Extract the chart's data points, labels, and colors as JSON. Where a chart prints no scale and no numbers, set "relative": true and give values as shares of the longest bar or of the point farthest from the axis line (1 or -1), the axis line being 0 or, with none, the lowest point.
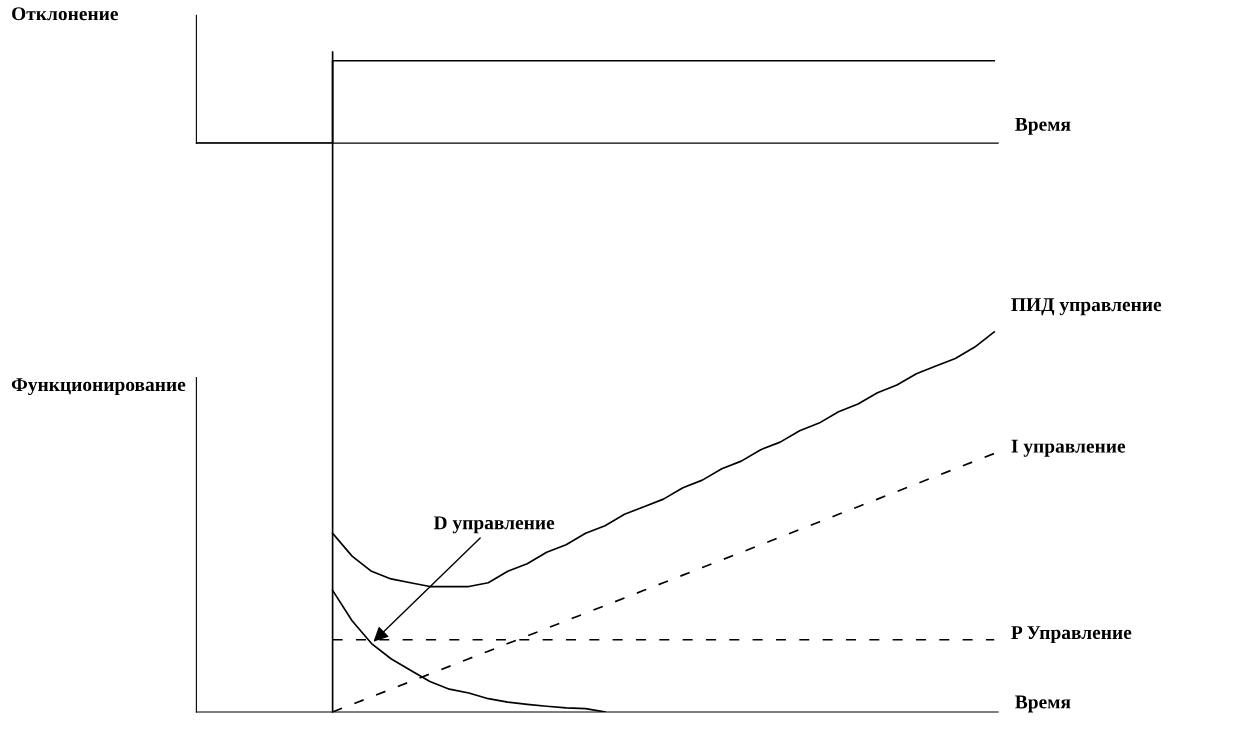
{
  "chart_data": [
    {
      "type": "step",
      "relative": true,
      "ylabel": "Отклонение",
      "xlabel": "Время",
      "tick_labels": false,
      "grid": false,
      "legend": false,
      "categories": [
        null,
        null,
        null,
        null,
        null,
        null,
        null,
        null,
        null,
        null,
        null,
        null,
        null,
        null,
        null,
        null,
        null,
        null,
        null,
        null,
        null,
        null,
        null,
        null,
        null,
        null,
        null,
        null,
        null,
        null,
        null,
        null,
        null,
        null,
        null,
        null,
        null,
        null,
        null,
        null,
        null,
        null
      ],
      "series": [
        {
          "color": "#000000",
          "line_style": "solid",
          "values": [
            0,
            0,
            0,
            0,
            0,
            0,
            0,
            1,
            1,
            1,
            1,
            1,
            1,
            1,
            1,
            1,
            1,
            1,
            1,
            1,
            1,
            1,
            1,
            1,
            1,
            1,
            1,
            1,
            1,
            1,
            1,
            1,
            1,
            1,
            1,
            1,
            1,
            1,
            1,
            1,
            1,
            1
          ]
        }
      ]
    },
    {
      "type": "line",
      "relative": true,
      "ylabel": "Функционирование",
      "xlabel": "Время",
      "tick_labels": false,
      "grid": false,
      "legend": false,
      "categories": [
        null,
        null,
        null,
        null,
        null,
        null,
        null,
        null,
        null,
        null,
        null,
        null,
        null,
        null,
        null,
        null,
        null,
        null,
        null,
        null,
        null,
        null,
        null,
        null,
        null,
        null,
        null,
        null,
        null,
        null,
        null,
        null,
        null,
        null,
        null,
        null,
        null,
        null,
        null,
        null,
        null,
        null
      ],
      "series": [
        {
          "name": "ПИД управление",
          "color": "#000000",
          "line_style": "solid",
          "values": [
            null,
            null,
            null,
            null,
            null,
            null,
            null,
            0.47,
            0.41,
            0.37,
            0.35,
            0.34,
            0.33,
            0.33,
            0.33,
            0.34,
            0.37,
            0.39,
            0.42,
            0.44,
            0.47,
            0.49,
            0.52,
            0.54,
            0.56,
            0.59,
            0.61,
            0.64,
            0.66,
            0.69,
            0.71,
            0.74,
            0.76,
            0.79,
            0.81,
            0.84,
            0.86,
            0.89,
            0.91,
            0.93,
            0.96,
            1.0
          ]
        },
        {
          "name": "I управление",
          "color": "#000000",
          "line_style": "dashed",
          "values": [
            null,
            null,
            null,
            null,
            null,
            null,
            null,
            0,
            0.02,
            0.04,
            0.06,
            0.08,
            0.1,
            0.12,
            0.14,
            0.16,
            0.18,
            0.2,
            0.22,
            0.24,
            0.26,
            0.28,
            0.3,
            0.32,
            0.34,
            0.36,
            0.38,
            0.4,
            0.42,
            0.44,
            0.46,
            0.48,
            0.5,
            0.52,
            0.54,
            0.56,
            0.58,
            0.6,
            0.62,
            0.64,
            0.66,
            0.68
          ]
        },
        {
          "name": "P Управление",
          "color": "#000000",
          "line_style": "dashed",
          "values": [
            null,
            null,
            null,
            null,
            null,
            null,
            null,
            0.19,
            0.19,
            0.19,
            0.19,
            0.19,
            0.19,
            0.19,
            0.19,
            0.19,
            0.19,
            0.19,
            0.19,
            0.19,
            0.19,
            0.19,
            0.19,
            0.19,
            0.19,
            0.19,
            0.19,
            0.19,
            0.19,
            0.19,
            0.19,
            0.19,
            0.19,
            0.19,
            0.19,
            0.19,
            0.19,
            0.19,
            0.19,
            0.19,
            0.19,
            0.19
          ]
        },
        {
          "name": "D управление",
          "color": "#000000",
          "line_style": "solid",
          "values": [
            null,
            null,
            null,
            null,
            null,
            null,
            null,
            0.32,
            0.24,
            0.18,
            0.14,
            0.11,
            0.08,
            0.06,
            0.05,
            0.035,
            0.026,
            0.02,
            0.015,
            0.011,
            0.009,
            0,
            null,
            null,
            null,
            null,
            null,
            null,
            null,
            null,
            null,
            null,
            null,
            null,
            null,
            null,
            null,
            null,
            null,
            null,
            null,
            null
          ]
        }
      ]
    }
  ]
}
